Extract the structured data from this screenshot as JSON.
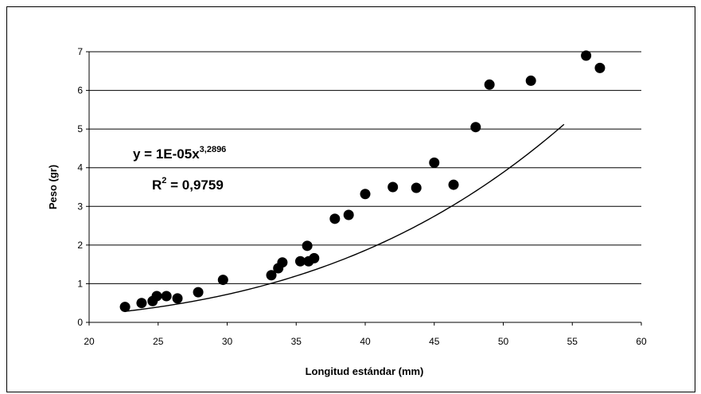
{
  "chart_data": {
    "type": "scatter",
    "xlabel": "Longitud estándar (mm)",
    "ylabel": "Peso (gr)",
    "xlim": [
      20,
      60
    ],
    "ylim": [
      0,
      7
    ],
    "x_ticks": [
      20,
      25,
      30,
      35,
      40,
      45,
      50,
      55,
      60
    ],
    "y_ticks": [
      0,
      1,
      2,
      3,
      4,
      5,
      6,
      7
    ],
    "grid": "horizontal",
    "legend": "none",
    "marker_color": "#000000",
    "points": [
      {
        "x": 22.6,
        "y": 0.4
      },
      {
        "x": 23.8,
        "y": 0.5
      },
      {
        "x": 24.6,
        "y": 0.55
      },
      {
        "x": 24.9,
        "y": 0.68
      },
      {
        "x": 25.6,
        "y": 0.68
      },
      {
        "x": 26.4,
        "y": 0.62
      },
      {
        "x": 27.9,
        "y": 0.78
      },
      {
        "x": 29.7,
        "y": 1.1
      },
      {
        "x": 33.2,
        "y": 1.22
      },
      {
        "x": 33.7,
        "y": 1.4
      },
      {
        "x": 34.0,
        "y": 1.55
      },
      {
        "x": 35.3,
        "y": 1.58
      },
      {
        "x": 35.8,
        "y": 1.98
      },
      {
        "x": 35.9,
        "y": 1.58
      },
      {
        "x": 36.3,
        "y": 1.66
      },
      {
        "x": 37.8,
        "y": 2.68
      },
      {
        "x": 38.8,
        "y": 2.78
      },
      {
        "x": 40.0,
        "y": 3.32
      },
      {
        "x": 42.0,
        "y": 3.5
      },
      {
        "x": 43.7,
        "y": 3.48
      },
      {
        "x": 45.0,
        "y": 4.13
      },
      {
        "x": 46.4,
        "y": 3.56
      },
      {
        "x": 48.0,
        "y": 5.05
      },
      {
        "x": 49.0,
        "y": 6.15
      },
      {
        "x": 52.0,
        "y": 6.25
      },
      {
        "x": 56.0,
        "y": 6.9
      },
      {
        "x": 57.0,
        "y": 6.58
      }
    ],
    "trendline": {
      "type": "power",
      "coefficient": 1e-05,
      "exponent": 3.2896,
      "x_start": 22.6,
      "x_end": 54.4,
      "equation": {
        "prefix": "y = 1E-05x",
        "exponent_text": "3,2896",
        "r_prefix": "R",
        "r_sup": "2",
        "r_value": " = 0,9759"
      }
    }
  }
}
